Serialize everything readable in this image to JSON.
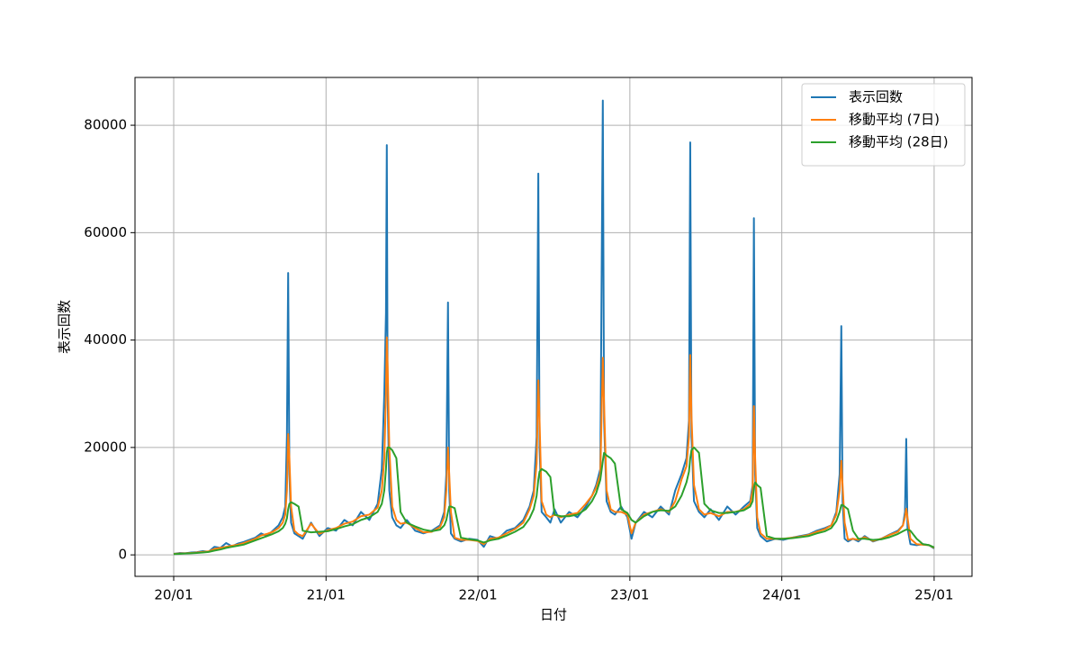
{
  "chart_data": {
    "type": "line",
    "xlabel": "日付",
    "ylabel": "表示回数",
    "x": [
      0,
      14,
      28,
      42,
      56,
      70,
      84,
      98,
      112,
      126,
      140,
      154,
      168,
      182,
      196,
      210,
      224,
      238,
      252,
      262,
      268,
      272,
      275,
      278,
      282,
      290,
      300,
      310,
      330,
      350,
      370,
      390,
      410,
      430,
      450,
      470,
      490,
      500,
      506,
      510,
      512,
      514,
      518,
      525,
      535,
      545,
      560,
      580,
      600,
      620,
      640,
      650,
      655,
      659,
      662,
      666,
      675,
      690,
      710,
      730,
      745,
      760,
      780,
      800,
      820,
      840,
      855,
      865,
      872,
      876,
      879,
      884,
      895,
      905,
      915,
      930,
      950,
      970,
      990,
      1005,
      1015,
      1025,
      1031,
      1034,
      1040,
      1050,
      1060,
      1075,
      1090,
      1100,
      1110,
      1130,
      1150,
      1170,
      1190,
      1205,
      1220,
      1232,
      1238,
      1241,
      1244,
      1250,
      1262,
      1275,
      1290,
      1310,
      1330,
      1350,
      1370,
      1385,
      1391,
      1394,
      1397,
      1402,
      1410,
      1425,
      1445,
      1465,
      1485,
      1505,
      1525,
      1545,
      1565,
      1580,
      1592,
      1600,
      1604,
      1607,
      1612,
      1620,
      1632,
      1645,
      1660,
      1680,
      1700,
      1720,
      1740,
      1752,
      1757,
      1760,
      1763,
      1770,
      1785,
      1800,
      1815,
      1827
    ],
    "series": [
      {
        "name": "表示回数",
        "color": "#1f77b4",
        "values": [
          200,
          350,
          300,
          450,
          500,
          700,
          600,
          1500,
          1300,
          2200,
          1600,
          2100,
          2400,
          2800,
          3200,
          4000,
          3500,
          4500,
          5500,
          7000,
          9000,
          22000,
          52500,
          15000,
          6000,
          4000,
          3500,
          3000,
          6000,
          3500,
          5000,
          4500,
          6500,
          5500,
          8000,
          6500,
          9500,
          16000,
          30000,
          45000,
          76300,
          30000,
          12000,
          7000,
          5500,
          5000,
          6500,
          4500,
          4000,
          4500,
          5500,
          8000,
          15000,
          47000,
          12000,
          4000,
          3000,
          2500,
          3000,
          2800,
          1500,
          3500,
          3000,
          4500,
          5000,
          6500,
          9000,
          12000,
          22000,
          71000,
          20000,
          8000,
          7000,
          6000,
          8500,
          6000,
          8000,
          7000,
          9000,
          11000,
          13000,
          16000,
          84600,
          25000,
          10000,
          8000,
          7500,
          9000,
          7000,
          3000,
          6000,
          8000,
          7000,
          9000,
          7500,
          12000,
          15000,
          18000,
          25000,
          76800,
          22000,
          10000,
          8000,
          7000,
          8500,
          6500,
          9000,
          7500,
          9000,
          10000,
          13000,
          62700,
          15000,
          5000,
          3500,
          2500,
          3000,
          2800,
          3200,
          3500,
          3800,
          4500,
          5000,
          5500,
          8000,
          15000,
          42600,
          10000,
          3000,
          2500,
          3000,
          2500,
          3500,
          2500,
          3000,
          3800,
          4500,
          5500,
          8000,
          21600,
          5000,
          2000,
          1800,
          2000,
          1800,
          1200
        ]
      },
      {
        "name": "移動平均 (7日)",
        "color": "#ff7f0e",
        "values": [
          200,
          250,
          300,
          350,
          450,
          550,
          650,
          1100,
          1300,
          1500,
          1700,
          1900,
          2200,
          2600,
          3000,
          3600,
          3900,
          4300,
          5000,
          6000,
          7500,
          12000,
          22500,
          18000,
          9000,
          4500,
          3800,
          3500,
          5800,
          3900,
          4600,
          5000,
          5800,
          6200,
          7200,
          7500,
          8800,
          12000,
          18000,
          30000,
          40500,
          35000,
          20000,
          9000,
          6500,
          5800,
          6000,
          5000,
          4200,
          4300,
          5200,
          7000,
          12000,
          20000,
          15000,
          8000,
          3200,
          2800,
          2800,
          2600,
          2000,
          3000,
          3200,
          4000,
          4800,
          6000,
          8500,
          11000,
          17000,
          32500,
          25000,
          10000,
          7500,
          7000,
          7500,
          7000,
          7500,
          7800,
          9500,
          11000,
          12500,
          15000,
          36700,
          28000,
          12000,
          8500,
          8000,
          8000,
          7500,
          4000,
          6000,
          7500,
          8000,
          8500,
          8000,
          10000,
          14000,
          16500,
          22000,
          37200,
          26000,
          13000,
          8500,
          7500,
          7800,
          7200,
          8000,
          8000,
          8500,
          9500,
          12000,
          27700,
          18000,
          7000,
          4000,
          3000,
          3000,
          3000,
          3200,
          3400,
          3700,
          4300,
          4800,
          5500,
          7500,
          12000,
          17500,
          13000,
          6000,
          2800,
          3000,
          2800,
          3300,
          2600,
          3000,
          3700,
          4300,
          5500,
          7000,
          8600,
          7000,
          3000,
          2000,
          1900,
          1800,
          1300
        ]
      },
      {
        "name": "移動平均 (28日)",
        "color": "#2ca02c",
        "values": [
          150,
          200,
          250,
          300,
          350,
          450,
          550,
          800,
          1000,
          1300,
          1500,
          1700,
          1900,
          2300,
          2700,
          3100,
          3500,
          3900,
          4400,
          5000,
          5800,
          6800,
          8500,
          9500,
          9800,
          9500,
          9000,
          4500,
          4200,
          4300,
          4400,
          4800,
          5300,
          5700,
          6500,
          7000,
          8000,
          9500,
          12000,
          16000,
          19000,
          20000,
          20000,
          19500,
          18000,
          8000,
          6000,
          5300,
          4700,
          4400,
          4700,
          5500,
          6500,
          8000,
          9000,
          9000,
          8700,
          3200,
          2900,
          2700,
          2300,
          2700,
          3000,
          3600,
          4300,
          5200,
          6800,
          8500,
          11000,
          14000,
          15500,
          16000,
          15500,
          14500,
          7500,
          7200,
          7200,
          7500,
          8500,
          10000,
          11500,
          14000,
          17500,
          19000,
          18500,
          18000,
          17000,
          8500,
          7800,
          6500,
          6000,
          7200,
          8000,
          8300,
          8200,
          9000,
          11000,
          13500,
          15500,
          18000,
          19500,
          20000,
          19000,
          9500,
          8300,
          7800,
          7800,
          8000,
          8300,
          9000,
          10000,
          12500,
          13500,
          13000,
          12500,
          3500,
          3000,
          3000,
          3100,
          3300,
          3500,
          4000,
          4400,
          5000,
          6300,
          8000,
          9300,
          9300,
          9000,
          8500,
          4500,
          3000,
          3000,
          2800,
          2900,
          3300,
          3900,
          4400,
          4600,
          4700,
          4700,
          4500,
          3000,
          2000,
          1800,
          1400
        ]
      }
    ],
    "xlim": [
      -93,
      1918
    ],
    "xticks": [
      {
        "value": 0,
        "label": "20/01"
      },
      {
        "value": 366,
        "label": "21/01"
      },
      {
        "value": 731,
        "label": "22/01"
      },
      {
        "value": 1096,
        "label": "23/01"
      },
      {
        "value": 1461,
        "label": "24/01"
      },
      {
        "value": 1827,
        "label": "25/01"
      }
    ],
    "ylim": [
      -4000,
      88900
    ],
    "yticks": [
      0,
      20000,
      40000,
      60000,
      80000
    ],
    "grid": true,
    "legend": "upper right"
  }
}
